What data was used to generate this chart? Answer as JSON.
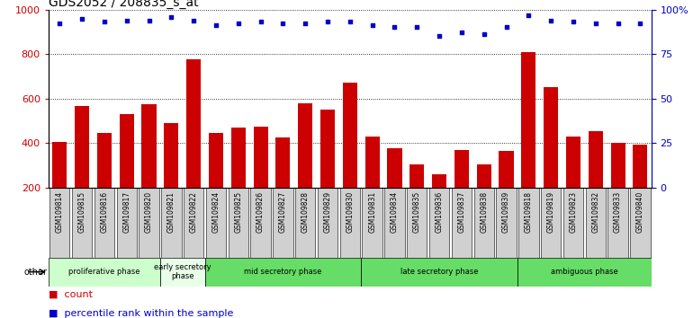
{
  "title": "GDS2052 / 208835_s_at",
  "categories": [
    "GSM109814",
    "GSM109815",
    "GSM109816",
    "GSM109817",
    "GSM109820",
    "GSM109821",
    "GSM109822",
    "GSM109824",
    "GSM109825",
    "GSM109826",
    "GSM109827",
    "GSM109828",
    "GSM109829",
    "GSM109830",
    "GSM109831",
    "GSM109834",
    "GSM109835",
    "GSM109836",
    "GSM109837",
    "GSM109838",
    "GSM109839",
    "GSM109818",
    "GSM109819",
    "GSM109823",
    "GSM109832",
    "GSM109833",
    "GSM109840"
  ],
  "counts": [
    405,
    565,
    445,
    530,
    575,
    490,
    775,
    445,
    470,
    475,
    425,
    580,
    550,
    670,
    430,
    375,
    305,
    260,
    370,
    305,
    365,
    810,
    650,
    430,
    455,
    400,
    395
  ],
  "percentiles": [
    92,
    95,
    93,
    94,
    94,
    96,
    94,
    91,
    92,
    93,
    92,
    92,
    93,
    93,
    91,
    90,
    90,
    85,
    87,
    86,
    90,
    97,
    94,
    93,
    92,
    92,
    92
  ],
  "phases": [
    {
      "label": "proliferative phase",
      "start": 0,
      "end": 5,
      "color": "#ccffcc"
    },
    {
      "label": "early secretory\nphase",
      "start": 5,
      "end": 7,
      "color": "#e8ffe8"
    },
    {
      "label": "mid secretory phase",
      "start": 7,
      "end": 14,
      "color": "#66dd66"
    },
    {
      "label": "late secretory phase",
      "start": 14,
      "end": 21,
      "color": "#66dd66"
    },
    {
      "label": "ambiguous phase",
      "start": 21,
      "end": 27,
      "color": "#66dd66"
    }
  ],
  "ylim_left": [
    200,
    1000
  ],
  "ylim_right": [
    0,
    100
  ],
  "bar_color": "#cc0000",
  "dot_color": "#0000cc",
  "plot_bg_color": "#ffffff",
  "tick_bg_color": "#d0d0d0",
  "title_fontsize": 10,
  "axis_color_left": "#cc0000",
  "axis_color_right": "#0000cc",
  "yticks_left": [
    200,
    400,
    600,
    800,
    1000
  ],
  "yticks_right": [
    0,
    25,
    50,
    75,
    100
  ]
}
